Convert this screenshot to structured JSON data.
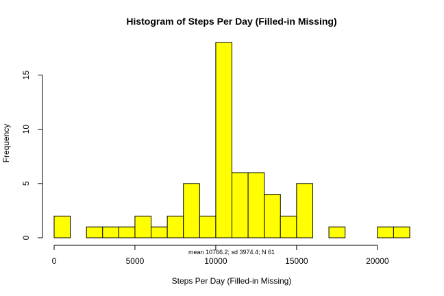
{
  "chart_data": {
    "type": "bar",
    "title": "Histogram of Steps Per Day (Filled-in Missing)",
    "xlabel": "Steps Per Day (Filled-in Missing)",
    "ylabel": "Frequency",
    "annotation": "mean 10766.2; sd 3974.4; N 61",
    "bar_color": "#ffff00",
    "edge_color": "#000000",
    "grid": false,
    "legend": "none",
    "xlim": [
      0,
      22000
    ],
    "ylim": [
      0,
      18
    ],
    "bin_width": 1000,
    "bins": [
      {
        "start": 0,
        "end": 1000,
        "count": 2
      },
      {
        "start": 1000,
        "end": 2000,
        "count": 0
      },
      {
        "start": 2000,
        "end": 3000,
        "count": 1
      },
      {
        "start": 3000,
        "end": 4000,
        "count": 1
      },
      {
        "start": 4000,
        "end": 5000,
        "count": 1
      },
      {
        "start": 5000,
        "end": 6000,
        "count": 2
      },
      {
        "start": 6000,
        "end": 7000,
        "count": 1
      },
      {
        "start": 7000,
        "end": 8000,
        "count": 2
      },
      {
        "start": 8000,
        "end": 9000,
        "count": 5
      },
      {
        "start": 9000,
        "end": 10000,
        "count": 2
      },
      {
        "start": 10000,
        "end": 11000,
        "count": 18
      },
      {
        "start": 11000,
        "end": 12000,
        "count": 6
      },
      {
        "start": 12000,
        "end": 13000,
        "count": 6
      },
      {
        "start": 13000,
        "end": 14000,
        "count": 4
      },
      {
        "start": 14000,
        "end": 15000,
        "count": 2
      },
      {
        "start": 15000,
        "end": 16000,
        "count": 5
      },
      {
        "start": 16000,
        "end": 17000,
        "count": 0
      },
      {
        "start": 17000,
        "end": 18000,
        "count": 1
      },
      {
        "start": 18000,
        "end": 19000,
        "count": 0
      },
      {
        "start": 19000,
        "end": 20000,
        "count": 0
      },
      {
        "start": 20000,
        "end": 21000,
        "count": 1
      },
      {
        "start": 21000,
        "end": 22000,
        "count": 1
      }
    ],
    "x_ticks": [
      {
        "value": 0,
        "label": "0"
      },
      {
        "value": 5000,
        "label": "5000"
      },
      {
        "value": 10000,
        "label": "10000"
      },
      {
        "value": 15000,
        "label": "15000"
      },
      {
        "value": 20000,
        "label": "20000"
      }
    ],
    "y_ticks": [
      {
        "value": 0,
        "label": "0"
      },
      {
        "value": 5,
        "label": "5"
      },
      {
        "value": 10,
        "label": "10"
      },
      {
        "value": 15,
        "label": "15"
      }
    ]
  }
}
